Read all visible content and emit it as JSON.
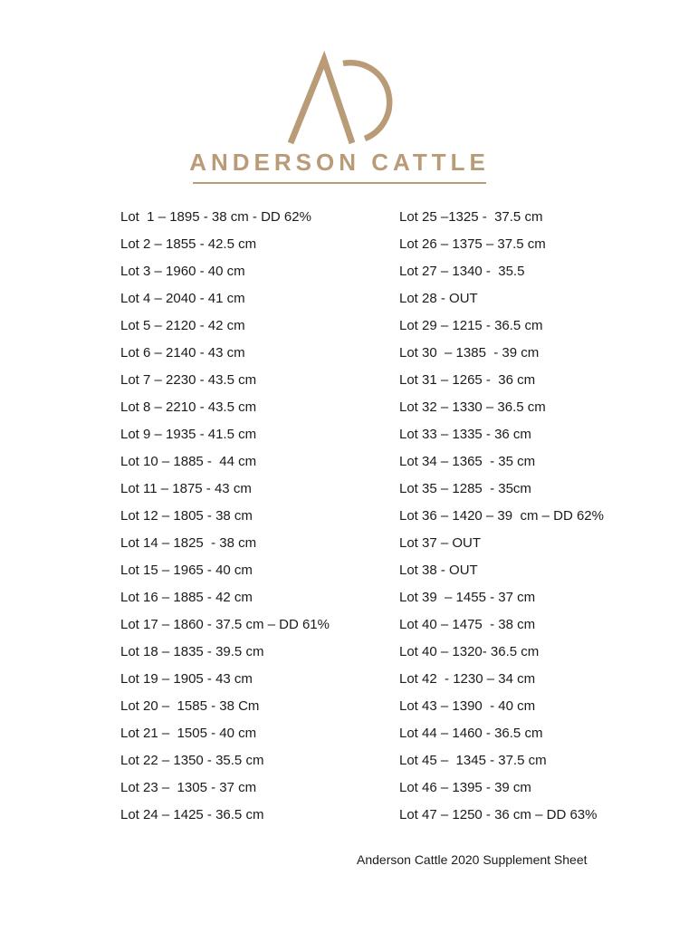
{
  "page": {
    "background_color": "#ffffff",
    "text_color": "#1b1b1b",
    "brand_color": "#B99B78"
  },
  "logo": {
    "monogram": "AC",
    "wordmark": "ANDERSON CATTLE"
  },
  "lots": {
    "left_column": [
      "Lot  1 – 1895 - 38 cm - DD 62%",
      "Lot 2 – 1855 - 42.5 cm",
      "Lot 3 – 1960 - 40 cm",
      "Lot 4 – 2040 - 41 cm",
      "Lot 5 – 2120 - 42 cm",
      "Lot 6 – 2140 - 43 cm",
      "Lot 7 – 2230 - 43.5 cm",
      "Lot 8 – 2210 - 43.5 cm",
      "Lot 9 – 1935 - 41.5 cm",
      "Lot 10 – 1885 -  44 cm",
      "Lot 11 – 1875 - 43 cm",
      "Lot 12 – 1805 - 38 cm",
      "Lot 14 – 1825  - 38 cm",
      "Lot 15 – 1965 - 40 cm",
      "Lot 16 – 1885 - 42 cm",
      "Lot 17 – 1860 - 37.5 cm – DD 61%",
      "Lot 18 – 1835 - 39.5 cm",
      "Lot 19 – 1905 - 43 cm",
      "Lot 20 –  1585 - 38 Cm",
      "Lot 21 –  1505 - 40 cm",
      "Lot 22 – 1350 - 35.5 cm",
      "Lot 23 –  1305 - 37 cm",
      "Lot 24 – 1425 - 36.5 cm"
    ],
    "right_column": [
      "Lot 25 –1325 -  37.5 cm",
      "Lot 26 – 1375 – 37.5 cm",
      "Lot 27 – 1340 -  35.5",
      "Lot 28 - OUT",
      "Lot 29 – 1215 - 36.5 cm",
      "Lot 30  – 1385  - 39 cm",
      "Lot 31 – 1265 -  36 cm",
      "Lot 32 – 1330 – 36.5 cm",
      "Lot 33 – 1335 - 36 cm",
      "Lot 34 – 1365  - 35 cm",
      "Lot 35 – 1285  - 35cm",
      "Lot 36 – 1420 – 39  cm – DD 62%",
      "Lot 37 – OUT",
      "Lot 38 - OUT",
      "Lot 39  – 1455 - 37 cm",
      "Lot 40 – 1475  - 38 cm",
      "Lot 40 – 1320- 36.5 cm",
      "Lot 42  - 1230 – 34 cm",
      "Lot 43 – 1390  - 40 cm",
      "Lot 44 – 1460 - 36.5 cm",
      "Lot 45 –  1345 - 37.5 cm",
      "Lot 46 – 1395 - 39 cm",
      "Lot 47 – 1250 - 36 cm – DD 63%"
    ]
  },
  "footer": {
    "text": "Anderson Cattle 2020 Supplement Sheet"
  }
}
